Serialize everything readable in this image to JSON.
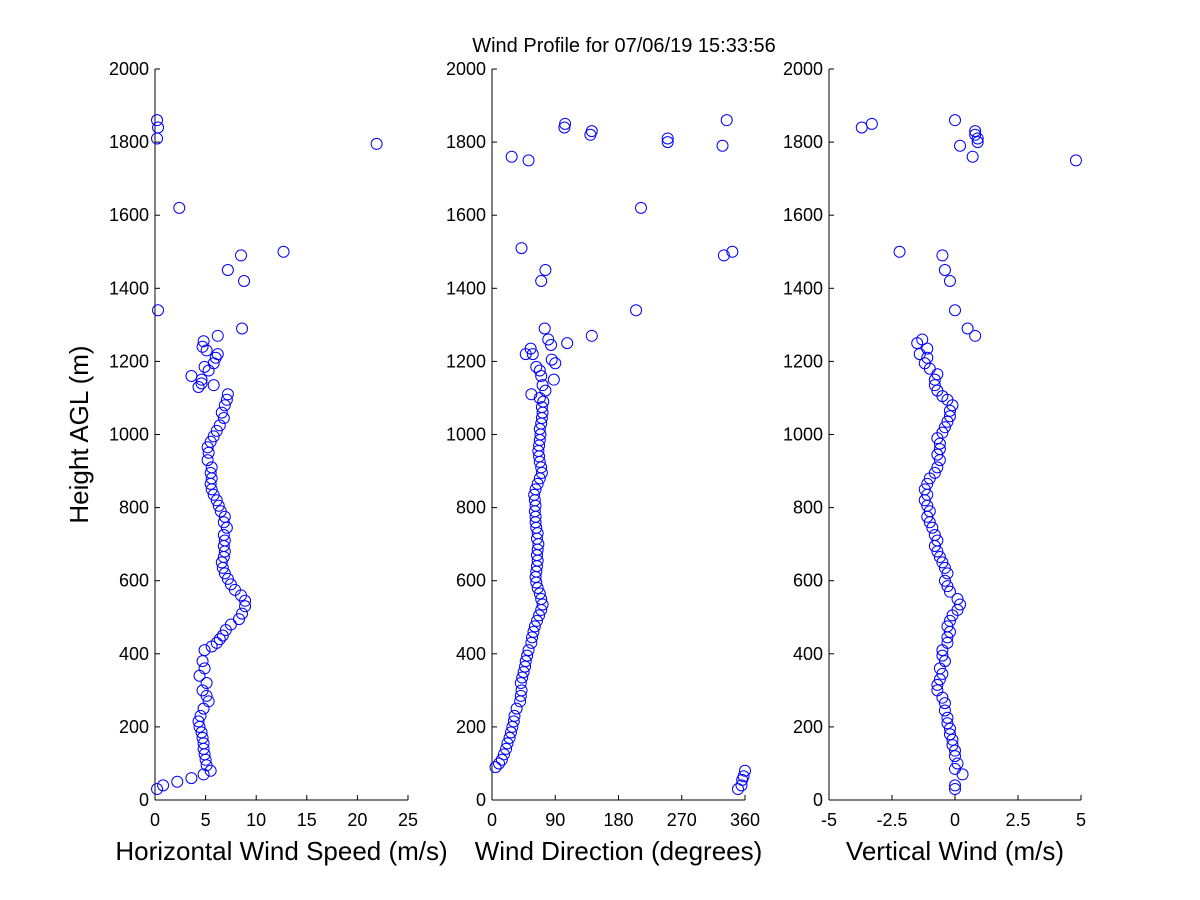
{
  "figure": {
    "title": "Wind Profile for  07/06/19 15:33:56"
  },
  "colors": {
    "marker": "#0000ff",
    "axis": "#000000",
    "background": "#ffffff"
  },
  "chart_data": [
    {
      "type": "scatter",
      "xlabel": "Horizontal Wind Speed (m/s)",
      "ylabel": "Height AGL (m)",
      "xlim": [
        0,
        25
      ],
      "ylim": [
        0,
        2000
      ],
      "xticks": [
        "0",
        "5",
        "10",
        "15",
        "20",
        "25"
      ],
      "yticks": [
        "0",
        "200",
        "400",
        "600",
        "800",
        "1000",
        "1200",
        "1400",
        "1600",
        "1800",
        "2000"
      ],
      "grid": false,
      "marker": "circle-open",
      "points": [
        [
          0.2,
          30
        ],
        [
          0.8,
          40
        ],
        [
          2.2,
          50
        ],
        [
          3.6,
          60
        ],
        [
          4.8,
          70
        ],
        [
          5.5,
          80
        ],
        [
          5.1,
          95
        ],
        [
          5,
          110
        ],
        [
          4.9,
          125
        ],
        [
          4.8,
          140
        ],
        [
          4.8,
          155
        ],
        [
          4.7,
          170
        ],
        [
          4.6,
          185
        ],
        [
          4.4,
          200
        ],
        [
          4.3,
          215
        ],
        [
          4.5,
          230
        ],
        [
          4.8,
          250
        ],
        [
          5.3,
          270
        ],
        [
          5.1,
          285
        ],
        [
          4.7,
          300
        ],
        [
          5.1,
          320
        ],
        [
          4.4,
          340
        ],
        [
          4.9,
          360
        ],
        [
          4.7,
          380
        ],
        [
          4.9,
          410
        ],
        [
          5.6,
          420
        ],
        [
          6.1,
          430
        ],
        [
          6.4,
          440
        ],
        [
          6.7,
          450
        ],
        [
          7,
          465
        ],
        [
          7.5,
          480
        ],
        [
          8.3,
          495
        ],
        [
          8.6,
          510
        ],
        [
          8.9,
          530
        ],
        [
          8.9,
          545
        ],
        [
          8.5,
          560
        ],
        [
          7.9,
          575
        ],
        [
          7.5,
          590
        ],
        [
          7.2,
          605
        ],
        [
          6.9,
          620
        ],
        [
          6.7,
          635
        ],
        [
          6.6,
          650
        ],
        [
          6.8,
          665
        ],
        [
          6.9,
          680
        ],
        [
          6.8,
          695
        ],
        [
          6.9,
          710
        ],
        [
          6.8,
          725
        ],
        [
          7.1,
          745
        ],
        [
          6.8,
          760
        ],
        [
          6.9,
          775
        ],
        [
          6.5,
          790
        ],
        [
          6.3,
          805
        ],
        [
          6.1,
          820
        ],
        [
          5.8,
          835
        ],
        [
          5.6,
          850
        ],
        [
          5.5,
          865
        ],
        [
          5.6,
          880
        ],
        [
          5.5,
          895
        ],
        [
          5.6,
          910
        ],
        [
          5.2,
          930
        ],
        [
          5.3,
          950
        ],
        [
          5.2,
          965
        ],
        [
          5.5,
          980
        ],
        [
          5.8,
          995
        ],
        [
          6.1,
          1010
        ],
        [
          6.4,
          1025
        ],
        [
          6.8,
          1045
        ],
        [
          6.6,
          1060
        ],
        [
          6.9,
          1080
        ],
        [
          7.1,
          1095
        ],
        [
          7.2,
          1110
        ],
        [
          5.8,
          1135
        ],
        [
          4.6,
          1140
        ],
        [
          4.3,
          1130
        ],
        [
          3.6,
          1160
        ],
        [
          4.6,
          1150
        ],
        [
          5.3,
          1175
        ],
        [
          4.9,
          1185
        ],
        [
          5.8,
          1195
        ],
        [
          6,
          1210
        ],
        [
          5.1,
          1230
        ],
        [
          4.7,
          1240
        ],
        [
          4.8,
          1255
        ],
        [
          6.2,
          1220
        ],
        [
          6.2,
          1270
        ],
        [
          8.6,
          1290
        ],
        [
          0.3,
          1340
        ],
        [
          8.8,
          1420
        ],
        [
          7.2,
          1450
        ],
        [
          8.5,
          1490
        ],
        [
          12.7,
          1500
        ],
        [
          2.4,
          1620
        ],
        [
          21.9,
          1795
        ],
        [
          0.2,
          1810
        ],
        [
          0.3,
          1840
        ],
        [
          0.2,
          1860
        ]
      ]
    },
    {
      "type": "scatter",
      "xlabel": "Wind Direction (degrees)",
      "xlim": [
        0,
        360
      ],
      "ylim": [
        0,
        2000
      ],
      "xticks": [
        "0",
        "90",
        "180",
        "270",
        "360"
      ],
      "yticks": [
        "0",
        "200",
        "400",
        "600",
        "800",
        "1000",
        "1200",
        "1400",
        "1600",
        "1800",
        "2000"
      ],
      "grid": false,
      "marker": "circle-open",
      "points": [
        [
          350,
          30
        ],
        [
          355,
          40
        ],
        [
          356,
          55
        ],
        [
          358,
          65
        ],
        [
          360,
          80
        ],
        [
          5,
          90
        ],
        [
          10,
          100
        ],
        [
          14,
          110
        ],
        [
          17,
          125
        ],
        [
          20,
          140
        ],
        [
          22,
          155
        ],
        [
          25,
          170
        ],
        [
          27,
          185
        ],
        [
          29,
          200
        ],
        [
          31,
          215
        ],
        [
          32,
          230
        ],
        [
          35,
          250
        ],
        [
          40,
          270
        ],
        [
          41,
          285
        ],
        [
          42,
          300
        ],
        [
          41,
          320
        ],
        [
          43,
          335
        ],
        [
          45,
          350
        ],
        [
          47,
          365
        ],
        [
          48,
          380
        ],
        [
          50,
          395
        ],
        [
          52,
          410
        ],
        [
          56,
          430
        ],
        [
          57,
          445
        ],
        [
          59,
          460
        ],
        [
          61,
          475
        ],
        [
          64,
          490
        ],
        [
          67,
          505
        ],
        [
          70,
          520
        ],
        [
          72,
          535
        ],
        [
          70,
          550
        ],
        [
          68,
          565
        ],
        [
          65,
          580
        ],
        [
          63,
          595
        ],
        [
          62,
          610
        ],
        [
          63,
          625
        ],
        [
          64,
          640
        ],
        [
          65,
          655
        ],
        [
          64,
          670
        ],
        [
          65,
          685
        ],
        [
          66,
          700
        ],
        [
          64,
          715
        ],
        [
          65,
          730
        ],
        [
          63,
          745
        ],
        [
          62,
          760
        ],
        [
          62,
          775
        ],
        [
          61,
          790
        ],
        [
          62,
          805
        ],
        [
          61,
          820
        ],
        [
          60,
          835
        ],
        [
          62,
          850
        ],
        [
          65,
          865
        ],
        [
          68,
          880
        ],
        [
          71,
          895
        ],
        [
          70,
          910
        ],
        [
          68,
          925
        ],
        [
          67,
          940
        ],
        [
          66,
          955
        ],
        [
          67,
          970
        ],
        [
          68,
          985
        ],
        [
          69,
          1000
        ],
        [
          68,
          1015
        ],
        [
          70,
          1030
        ],
        [
          71,
          1045
        ],
        [
          72,
          1060
        ],
        [
          71,
          1075
        ],
        [
          73,
          1090
        ],
        [
          68,
          1100
        ],
        [
          56,
          1110
        ],
        [
          76,
          1120
        ],
        [
          72,
          1135
        ],
        [
          88,
          1150
        ],
        [
          70,
          1160
        ],
        [
          68,
          1175
        ],
        [
          63,
          1185
        ],
        [
          90,
          1195
        ],
        [
          85,
          1205
        ],
        [
          58,
          1220
        ],
        [
          48,
          1220
        ],
        [
          55,
          1235
        ],
        [
          84,
          1245
        ],
        [
          107,
          1250
        ],
        [
          80,
          1260
        ],
        [
          142,
          1270
        ],
        [
          75,
          1290
        ],
        [
          205,
          1340
        ],
        [
          70,
          1420
        ],
        [
          76,
          1450
        ],
        [
          330,
          1490
        ],
        [
          342,
          1500
        ],
        [
          42,
          1510
        ],
        [
          212,
          1620
        ],
        [
          52,
          1750
        ],
        [
          28,
          1760
        ],
        [
          328,
          1790
        ],
        [
          250,
          1800
        ],
        [
          140,
          1820
        ],
        [
          250,
          1810
        ],
        [
          142,
          1830
        ],
        [
          103,
          1840
        ],
        [
          104,
          1850
        ],
        [
          334,
          1860
        ]
      ]
    },
    {
      "type": "scatter",
      "xlabel": "Vertical Wind (m/s)",
      "xlim": [
        -5,
        5
      ],
      "ylim": [
        0,
        2000
      ],
      "xticks": [
        "-5",
        "-2.5",
        "0",
        "2.5",
        "5"
      ],
      "yticks": [
        "0",
        "200",
        "400",
        "600",
        "800",
        "1000",
        "1200",
        "1400",
        "1600",
        "1800",
        "2000"
      ],
      "grid": false,
      "marker": "circle-open",
      "points": [
        [
          0,
          30
        ],
        [
          0,
          40
        ],
        [
          0.3,
          70
        ],
        [
          0,
          85
        ],
        [
          0.1,
          100
        ],
        [
          0,
          120
        ],
        [
          0,
          135
        ],
        [
          -0.1,
          150
        ],
        [
          -0.1,
          165
        ],
        [
          -0.2,
          180
        ],
        [
          -0.2,
          195
        ],
        [
          -0.3,
          210
        ],
        [
          -0.3,
          225
        ],
        [
          -0.4,
          245
        ],
        [
          -0.4,
          265
        ],
        [
          -0.5,
          280
        ],
        [
          -0.7,
          300
        ],
        [
          -0.7,
          315
        ],
        [
          -0.6,
          330
        ],
        [
          -0.5,
          345
        ],
        [
          -0.6,
          360
        ],
        [
          -0.4,
          380
        ],
        [
          -0.5,
          395
        ],
        [
          -0.5,
          410
        ],
        [
          -0.3,
          430
        ],
        [
          -0.3,
          445
        ],
        [
          -0.2,
          460
        ],
        [
          -0.3,
          475
        ],
        [
          -0.2,
          490
        ],
        [
          -0.1,
          505
        ],
        [
          0.1,
          520
        ],
        [
          0.2,
          535
        ],
        [
          0.1,
          550
        ],
        [
          -0.2,
          570
        ],
        [
          -0.3,
          585
        ],
        [
          -0.4,
          600
        ],
        [
          -0.3,
          620
        ],
        [
          -0.4,
          635
        ],
        [
          -0.5,
          650
        ],
        [
          -0.6,
          665
        ],
        [
          -0.7,
          680
        ],
        [
          -0.8,
          695
        ],
        [
          -0.7,
          710
        ],
        [
          -0.8,
          725
        ],
        [
          -0.9,
          745
        ],
        [
          -1,
          760
        ],
        [
          -1.1,
          775
        ],
        [
          -1,
          790
        ],
        [
          -1.1,
          805
        ],
        [
          -1.2,
          820
        ],
        [
          -1.1,
          835
        ],
        [
          -1.2,
          850
        ],
        [
          -1.1,
          865
        ],
        [
          -1,
          880
        ],
        [
          -0.8,
          895
        ],
        [
          -0.7,
          910
        ],
        [
          -0.6,
          930
        ],
        [
          -0.7,
          945
        ],
        [
          -0.6,
          960
        ],
        [
          -0.6,
          975
        ],
        [
          -0.7,
          990
        ],
        [
          -0.5,
          1005
        ],
        [
          -0.4,
          1020
        ],
        [
          -0.3,
          1035
        ],
        [
          -0.2,
          1050
        ],
        [
          -0.2,
          1065
        ],
        [
          -0.1,
          1080
        ],
        [
          -0.3,
          1095
        ],
        [
          -0.5,
          1105
        ],
        [
          -0.7,
          1120
        ],
        [
          -0.8,
          1135
        ],
        [
          -0.8,
          1150
        ],
        [
          -0.7,
          1165
        ],
        [
          -1,
          1180
        ],
        [
          -1.2,
          1195
        ],
        [
          -1.1,
          1210
        ],
        [
          -1.4,
          1220
        ],
        [
          -1.1,
          1235
        ],
        [
          -1.5,
          1250
        ],
        [
          -1.3,
          1260
        ],
        [
          0.8,
          1270
        ],
        [
          0.5,
          1290
        ],
        [
          0,
          1340
        ],
        [
          -0.2,
          1420
        ],
        [
          -0.4,
          1450
        ],
        [
          -0.5,
          1490
        ],
        [
          -2.2,
          1500
        ],
        [
          4.8,
          1750
        ],
        [
          0.7,
          1760
        ],
        [
          0.2,
          1790
        ],
        [
          0.9,
          1800
        ],
        [
          0.8,
          1820
        ],
        [
          0.9,
          1810
        ],
        [
          0.8,
          1830
        ],
        [
          -3.7,
          1840
        ],
        [
          -3.3,
          1850
        ],
        [
          0,
          1860
        ]
      ]
    }
  ]
}
